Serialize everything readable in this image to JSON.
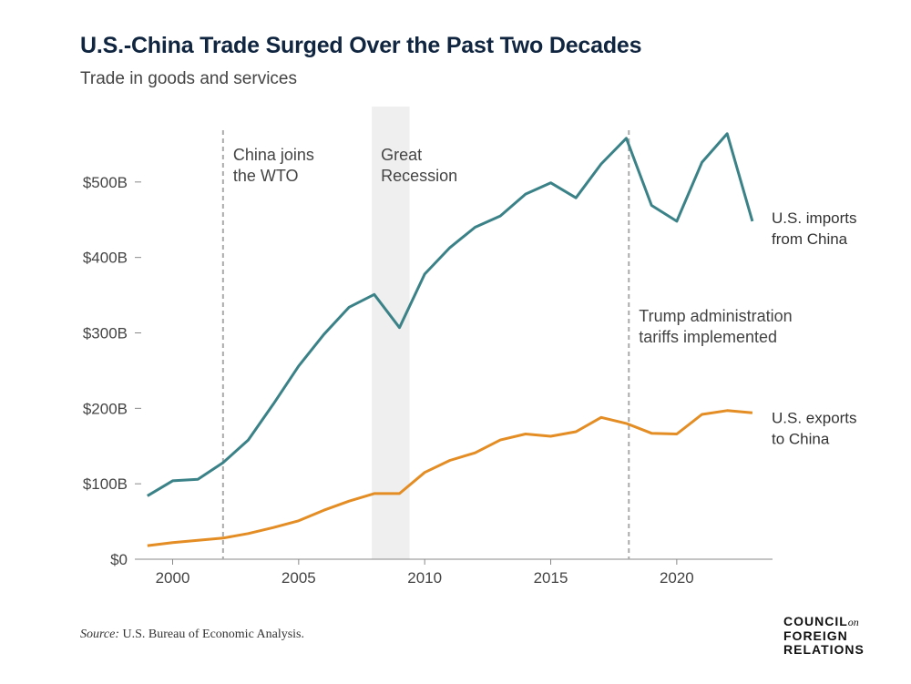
{
  "chart_data": {
    "type": "line",
    "title": "U.S.-China Trade Surged Over the Past Two Decades",
    "subtitle": "Trade in goods and services",
    "x": [
      1999,
      2000,
      2001,
      2002,
      2003,
      2004,
      2005,
      2006,
      2007,
      2008,
      2009,
      2010,
      2011,
      2012,
      2013,
      2014,
      2015,
      2016,
      2017,
      2018,
      2019,
      2020,
      2021,
      2022,
      2023
    ],
    "series": [
      {
        "name": "U.S. imports from China",
        "label_lines": [
          "U.S. imports",
          "from China"
        ],
        "color": "#3a8287",
        "values": [
          84,
          104,
          106,
          128,
          158,
          206,
          256,
          298,
          334,
          351,
          307,
          378,
          413,
          440,
          455,
          484,
          499,
          479,
          524,
          558,
          469,
          448,
          526,
          564,
          448
        ]
      },
      {
        "name": "U.S. exports to China",
        "label_lines": [
          "U.S. exports",
          "to China"
        ],
        "color": "#e38d24",
        "values": [
          18,
          22,
          25,
          28,
          34,
          42,
          51,
          65,
          77,
          87,
          87,
          115,
          131,
          141,
          158,
          166,
          163,
          169,
          188,
          180,
          167,
          166,
          192,
          197,
          194
        ]
      }
    ],
    "xlim": [
      1998.5,
      2023.8
    ],
    "ylim": [
      0,
      600
    ],
    "x_ticks": [
      2000,
      2005,
      2010,
      2015,
      2020
    ],
    "x_tick_labels": [
      "2000",
      "2005",
      "2010",
      "2015",
      "2020"
    ],
    "y_ticks": [
      0,
      100,
      200,
      300,
      400,
      500
    ],
    "y_tick_labels": [
      "$0",
      "$100B",
      "$200B",
      "$300B",
      "$400B",
      "$500B"
    ],
    "annotations": [
      {
        "kind": "vline",
        "x": 2002,
        "lines": [
          "China joins",
          "the WTO"
        ]
      },
      {
        "kind": "band",
        "x0": 2007.9,
        "x1": 2009.4,
        "lines": [
          "Great",
          "Recession"
        ]
      },
      {
        "kind": "vline",
        "x": 2018.1,
        "lines": [
          "Trump administration",
          "tariffs implemented"
        ]
      }
    ],
    "grid": false
  },
  "footer": {
    "source_label": "Source:",
    "source_text": "U.S. Bureau of Economic Analysis.",
    "logo_line1": "COUNCIL",
    "logo_on": "on",
    "logo_line2": "FOREIGN",
    "logo_line3": "RELATIONS"
  }
}
